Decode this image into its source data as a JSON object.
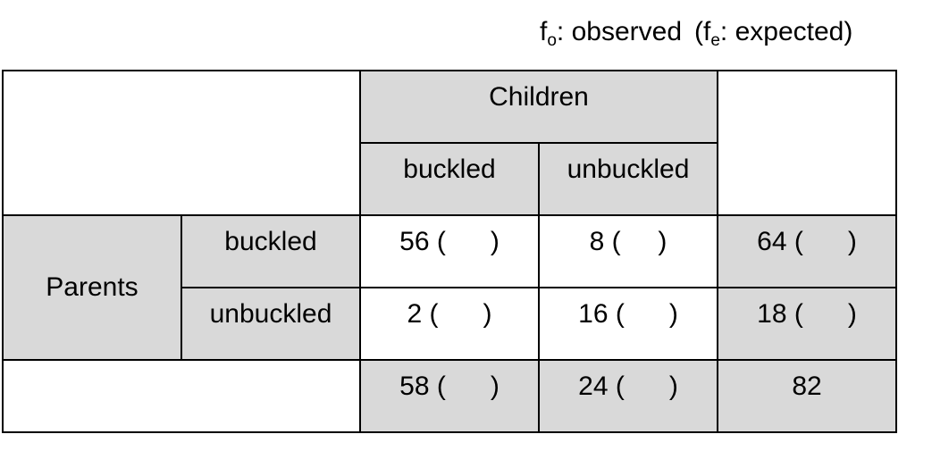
{
  "legend": {
    "observed_symbol": "f",
    "observed_sub": "o",
    "observed_text": ": observed",
    "expected_open": "(f",
    "expected_sub": "e",
    "expected_text": ": expected)"
  },
  "table": {
    "column_group_label": "Children",
    "column_headers": [
      "buckled",
      "unbuckled"
    ],
    "row_group_label": "Parents",
    "row_headers": [
      "buckled",
      "unbuckled"
    ],
    "cells": [
      [
        "56 (      )",
        "8 (     )"
      ],
      [
        "2 (      )",
        "16 (      )"
      ]
    ],
    "row_totals": [
      "64 (      )",
      "18 (      )"
    ],
    "column_totals": [
      "58 (      )",
      "24 (      )"
    ],
    "grand_total": "82"
  },
  "colors": {
    "shade": "#d9d9d9",
    "border": "#000000",
    "background": "#ffffff"
  }
}
